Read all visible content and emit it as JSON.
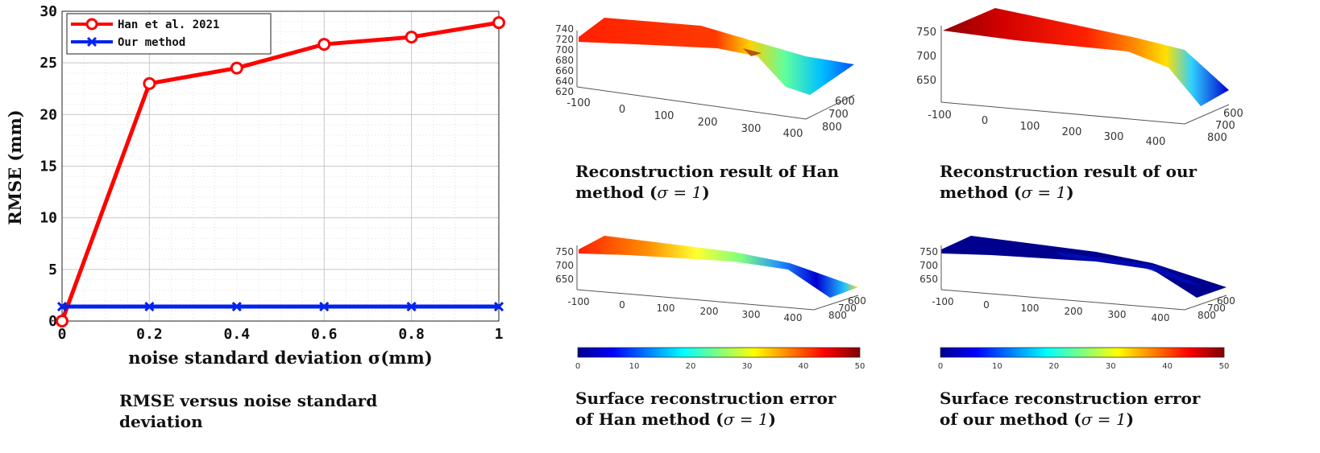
{
  "chart_data": [
    {
      "type": "line",
      "xlabel": "noise standard deviation σ(mm)",
      "ylabel": "RMSE (mm)",
      "xlim": [
        0,
        1
      ],
      "ylim": [
        0,
        30
      ],
      "xticks": [
        "0",
        "0.2",
        "0.4",
        "0.6",
        "0.8",
        "1"
      ],
      "yticks": [
        "0",
        "5",
        "10",
        "15",
        "20",
        "25",
        "30"
      ],
      "grid": true,
      "legend_position": "top-left",
      "x": [
        0,
        0.2,
        0.4,
        0.6,
        0.8,
        1.0
      ],
      "series": [
        {
          "name": "Han et al. 2021",
          "color": "#ff0000",
          "marker": "circle",
          "values": [
            0,
            23.0,
            24.5,
            26.8,
            27.5,
            28.9
          ]
        },
        {
          "name": "Our method",
          "color": "#0022ee",
          "marker": "x",
          "values": [
            1.4,
            1.4,
            1.4,
            1.4,
            1.4,
            1.4
          ]
        }
      ]
    }
  ],
  "captions": {
    "rmse": [
      "RMSE versus noise standard",
      "deviation"
    ],
    "han_recon": [
      "Reconstruction result of Han",
      "method (",
      "σ = 1",
      ")"
    ],
    "our_recon": [
      "Reconstruction result of our",
      "method (",
      "σ = 1",
      ")"
    ],
    "han_err": [
      "Surface reconstruction error",
      "of Han method (",
      "σ = 1",
      ")"
    ],
    "our_err": [
      "Surface reconstruction error",
      "of our method (",
      "σ = 1",
      ")"
    ]
  },
  "surface_plots": {
    "han_recon": {
      "z_ticks": [
        "740",
        "720",
        "700",
        "680",
        "660",
        "640",
        "620"
      ],
      "x_ticks": [
        "-100",
        "0",
        "100",
        "200",
        "300",
        "400"
      ],
      "y_ticks": [
        "600",
        "700",
        "800"
      ]
    },
    "our_recon": {
      "z_ticks": [
        "750",
        "700",
        "650"
      ],
      "x_ticks": [
        "-100",
        "0",
        "100",
        "200",
        "300",
        "400"
      ],
      "y_ticks": [
        "600",
        "700",
        "800"
      ]
    },
    "han_err": {
      "z_ticks": [
        "750",
        "700",
        "650"
      ],
      "x_ticks": [
        "-100",
        "0",
        "100",
        "200",
        "300",
        "400"
      ],
      "y_ticks": [
        "600",
        "700",
        "800"
      ]
    },
    "our_err": {
      "z_ticks": [
        "750",
        "700",
        "650"
      ],
      "x_ticks": [
        "-100",
        "0",
        "100",
        "200",
        "300",
        "400"
      ],
      "y_ticks": [
        "600",
        "700",
        "800"
      ]
    }
  },
  "colorbar": {
    "ticks": [
      "0",
      "10",
      "20",
      "30",
      "40",
      "50"
    ],
    "colormap": "jet"
  },
  "colors": {
    "han": "#ff0000",
    "ours": "#0022ee",
    "jet_low": "#00008f",
    "jet_high": "#800000"
  }
}
